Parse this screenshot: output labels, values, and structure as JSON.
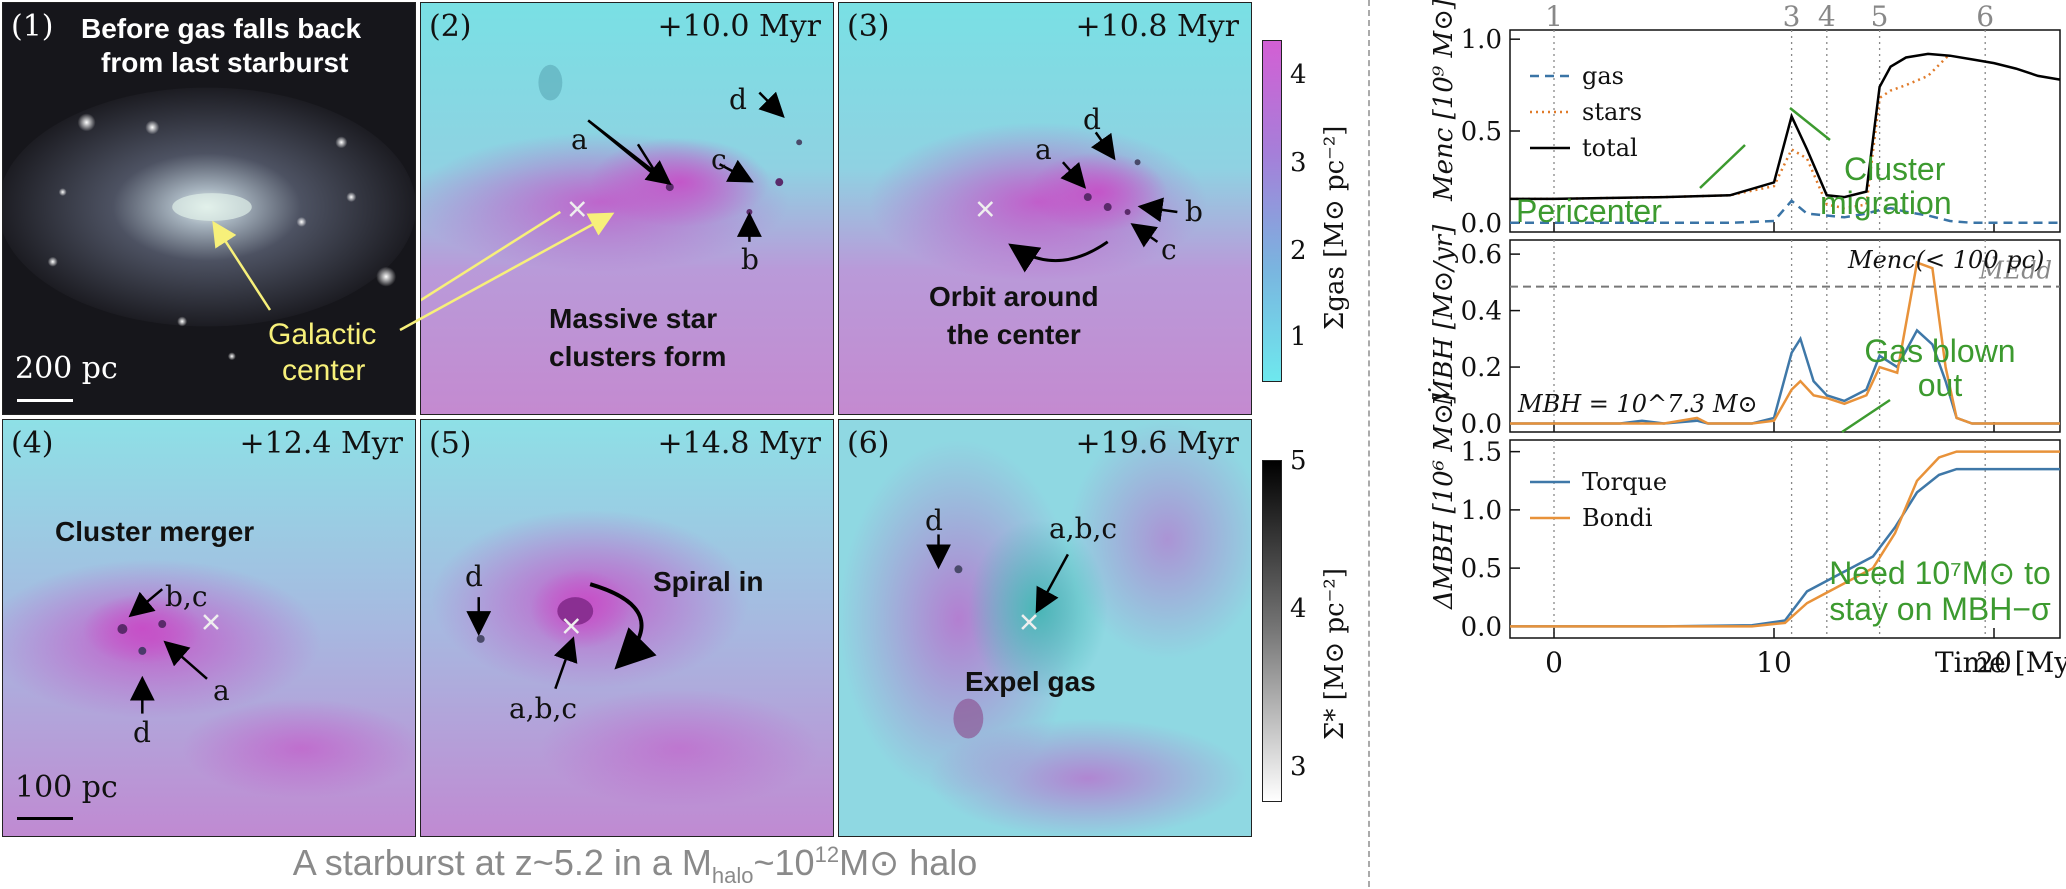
{
  "panels": [
    {
      "num": "(1)",
      "time": "",
      "title_line1": "Before gas falls back",
      "title_line2": "from last starburst",
      "label_line1": "Galactic",
      "label_line2": "center",
      "scale": "200 pc"
    },
    {
      "num": "(2)",
      "time": "+10.0 Myr",
      "label_line1": "Massive star",
      "label_line2": "clusters form",
      "cl_a": "a",
      "cl_b": "b",
      "cl_c": "c",
      "cl_d": "d"
    },
    {
      "num": "(3)",
      "time": "+10.8 Myr",
      "label_line1": "Orbit around",
      "label_line2": "the center",
      "cl_a": "a",
      "cl_b": "b",
      "cl_c": "c",
      "cl_d": "d"
    },
    {
      "num": "(4)",
      "time": "+12.4 Myr",
      "label_line1": "Cluster merger",
      "scale": "100 pc",
      "cl_bc": "b,c",
      "cl_a": "a",
      "cl_d": "d"
    },
    {
      "num": "(5)",
      "time": "+14.8 Myr",
      "label_line1": "Spiral in",
      "cl_abc": "a,b,c",
      "cl_d": "d"
    },
    {
      "num": "(6)",
      "time": "+19.6 Myr",
      "label_line1": "Expel gas",
      "cl_abc": "a,b,c",
      "cl_d": "d"
    }
  ],
  "colorbar_gas": {
    "label": "Σgas [M⊙ pc⁻²]",
    "ticks": [
      "4",
      "3",
      "2",
      "1"
    ]
  },
  "colorbar_stars": {
    "label": "Σ* [M⊙ pc⁻²]",
    "ticks": [
      "5",
      "4",
      "3"
    ]
  },
  "caption": {
    "pre": "A starburst at z~5.2 in a M",
    "sub": "halo",
    "mid": "~10",
    "sup": "12",
    "post": "M⊙ halo"
  },
  "colors": {
    "gas": "#3a74a6",
    "stars": "#e07b2a",
    "total": "#000000",
    "torque": "#3f78a8",
    "bondi": "#e8923a",
    "annotation": "#3c9a2f",
    "galactic_center": "#f7f07a",
    "magenta": "#c85ac8",
    "cyan": "#6fe2e8"
  },
  "chart_data": [
    {
      "type": "line",
      "ylabel": "Menc [10⁹ M⊙]",
      "ylim": [
        -0.05,
        1.05
      ],
      "yticks": [
        "0.0",
        "0.5",
        "1.0"
      ],
      "xlim": [
        -2,
        23
      ],
      "x": [
        -2,
        0,
        5,
        8,
        10,
        10.8,
        11.5,
        12.4,
        13.2,
        14.2,
        14.8,
        15.3,
        16,
        17,
        18,
        19,
        20,
        21,
        22,
        23
      ],
      "series": [
        {
          "name": "gas",
          "style": "dashed",
          "values": [
            0.0,
            0.0,
            0.0,
            0.0,
            0.01,
            0.12,
            0.05,
            0.04,
            0.03,
            0.05,
            0.07,
            0.08,
            0.06,
            0.04,
            0.01,
            0.0,
            0.0,
            0.0,
            0.0,
            0.0
          ]
        },
        {
          "name": "stars",
          "style": "dotted",
          "values": [
            0.13,
            0.13,
            0.14,
            0.15,
            0.2,
            0.4,
            0.35,
            0.1,
            0.08,
            0.1,
            0.68,
            0.72,
            0.75,
            0.8,
            0.92,
            null,
            null,
            null,
            null,
            null
          ]
        },
        {
          "name": "total",
          "style": "solid",
          "values": [
            0.13,
            0.13,
            0.14,
            0.15,
            0.22,
            0.58,
            0.4,
            0.15,
            0.14,
            0.17,
            0.74,
            0.85,
            0.9,
            0.92,
            0.91,
            0.89,
            0.87,
            0.84,
            0.8,
            0.78
          ]
        }
      ],
      "legend": [
        "gas",
        "stars",
        "total"
      ],
      "vlines": [
        {
          "x": 0,
          "label": "1"
        },
        {
          "x": 10.8,
          "label": "3"
        },
        {
          "x": 12.4,
          "label": "4"
        },
        {
          "x": 14.8,
          "label": "5"
        },
        {
          "x": 19.6,
          "label": "6"
        }
      ],
      "annotations": {
        "pericenter": "Pericenter",
        "migration1": "Cluster",
        "migration2": "migration",
        "menc": "Menc(< 100 pc)"
      }
    },
    {
      "type": "line",
      "ylabel": "ṀBH [M⊙/yr]",
      "ylim": [
        -0.03,
        0.65
      ],
      "yticks": [
        "0.0",
        "0.2",
        "0.4",
        "0.6"
      ],
      "xlim": [
        -2,
        23
      ],
      "x": [
        -2,
        0,
        3,
        4,
        5,
        6.5,
        7,
        9,
        10,
        10.8,
        11.2,
        11.8,
        12.4,
        13.2,
        14.2,
        14.8,
        15.6,
        16.5,
        17.2,
        17.8,
        18.3,
        19,
        23
      ],
      "series": [
        {
          "name": "Torque",
          "values": [
            0.0,
            0.0,
            0.0,
            0.01,
            0.0,
            0.01,
            0.0,
            0.0,
            0.02,
            0.25,
            0.3,
            0.15,
            0.1,
            0.08,
            0.12,
            0.24,
            0.2,
            0.33,
            0.28,
            0.15,
            0.02,
            0.0,
            0.0
          ]
        },
        {
          "name": "Bondi",
          "values": [
            0.0,
            0.0,
            0.0,
            0.0,
            0.0,
            0.02,
            0.0,
            0.0,
            0.01,
            0.12,
            0.15,
            0.1,
            0.09,
            0.07,
            0.1,
            0.2,
            0.18,
            0.57,
            0.55,
            0.2,
            0.02,
            0.0,
            0.0
          ]
        }
      ],
      "eddington": 0.485,
      "annotations": {
        "edd": "ṀEdd",
        "mbh": "MBH = 10^7.3 M⊙",
        "blown1": "Gas blown",
        "blown2": "out"
      }
    },
    {
      "type": "line",
      "ylabel": "ΔMBH [10⁶ M⊙]",
      "ylim": [
        -0.1,
        1.6
      ],
      "yticks": [
        "0.0",
        "0.5",
        "1.0",
        "1.5"
      ],
      "xlim": [
        -2,
        23
      ],
      "xticks": [
        "0",
        "10",
        "20"
      ],
      "xlabel": "Time [Myr]",
      "x": [
        -2,
        0,
        5,
        9,
        10.5,
        11.5,
        13,
        14.5,
        15.5,
        16.5,
        17.5,
        18.3,
        19,
        23
      ],
      "series": [
        {
          "name": "Torque",
          "values": [
            0.0,
            0.0,
            0.0,
            0.01,
            0.05,
            0.3,
            0.45,
            0.6,
            0.85,
            1.15,
            1.3,
            1.35,
            1.35,
            1.35
          ]
        },
        {
          "name": "Bondi",
          "values": [
            0.0,
            0.0,
            0.0,
            0.0,
            0.03,
            0.2,
            0.35,
            0.5,
            0.8,
            1.25,
            1.45,
            1.5,
            1.5,
            1.5
          ]
        }
      ],
      "legend": [
        "Torque",
        "Bondi"
      ],
      "annotations": {
        "need1": "Need 10⁷M⊙ to",
        "need2": "stay on MBH−σ"
      }
    }
  ]
}
